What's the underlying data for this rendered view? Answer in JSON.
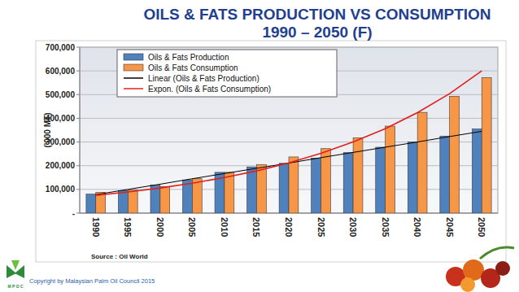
{
  "chart_data": {
    "type": "bar",
    "title": "OILS & FATS PRODUCTION VS CONSUMPTION",
    "subtitle": "1990 – 2050 (F)",
    "y_label": "('000 MT)",
    "annotations": [
      "Source : Oil World",
      "Copyright by Malaysian Palm Oil Council 2015",
      "M P O C"
    ],
    "categories": [
      "1990",
      "1995",
      "2000",
      "2005",
      "2010",
      "2015",
      "2020",
      "2025",
      "2030",
      "2035",
      "2040",
      "2045",
      "2050"
    ],
    "series": [
      {
        "name": "Oils & Fats Production",
        "type": "bar",
        "color": "#4f81bd",
        "values": [
          80000,
          95000,
          118000,
          140000,
          172000,
          195000,
          210000,
          232000,
          255000,
          278000,
          300000,
          325000,
          355000
        ]
      },
      {
        "name": "Oils & Fats Consumption",
        "type": "bar",
        "color": "#f79646",
        "values": [
          88000,
          97000,
          112000,
          145000,
          172000,
          205000,
          237000,
          272000,
          318000,
          367000,
          425000,
          493000,
          572000
        ]
      },
      {
        "name": "Linear (Oils & Fats Production)",
        "type": "line",
        "color": "#000000",
        "line_style": "solid",
        "values": [
          78000,
          100000,
          122000,
          145000,
          167000,
          189000,
          211000,
          234000,
          256000,
          278000,
          300000,
          323000,
          345000
        ]
      },
      {
        "name": "Expon. (Oils & Fats Consumption)",
        "type": "line",
        "color": "#e0201c",
        "line_style": "solid",
        "values": [
          75000,
          89000,
          106000,
          126000,
          150000,
          178000,
          212000,
          252000,
          300000,
          356000,
          424000,
          504000,
          600000
        ]
      }
    ],
    "ylim": [
      0,
      700000
    ],
    "yticks": [
      {
        "value": 0,
        "label": "-"
      },
      {
        "value": 100000,
        "label": "100,000"
      },
      {
        "value": 200000,
        "label": "200,000"
      },
      {
        "value": 300000,
        "label": "300,000"
      },
      {
        "value": 400000,
        "label": "400,000"
      },
      {
        "value": 500000,
        "label": "500,000"
      },
      {
        "value": 600000,
        "label": "600,000"
      },
      {
        "value": 700000,
        "label": "700,000"
      }
    ],
    "grid": true,
    "legend": "top-left"
  }
}
